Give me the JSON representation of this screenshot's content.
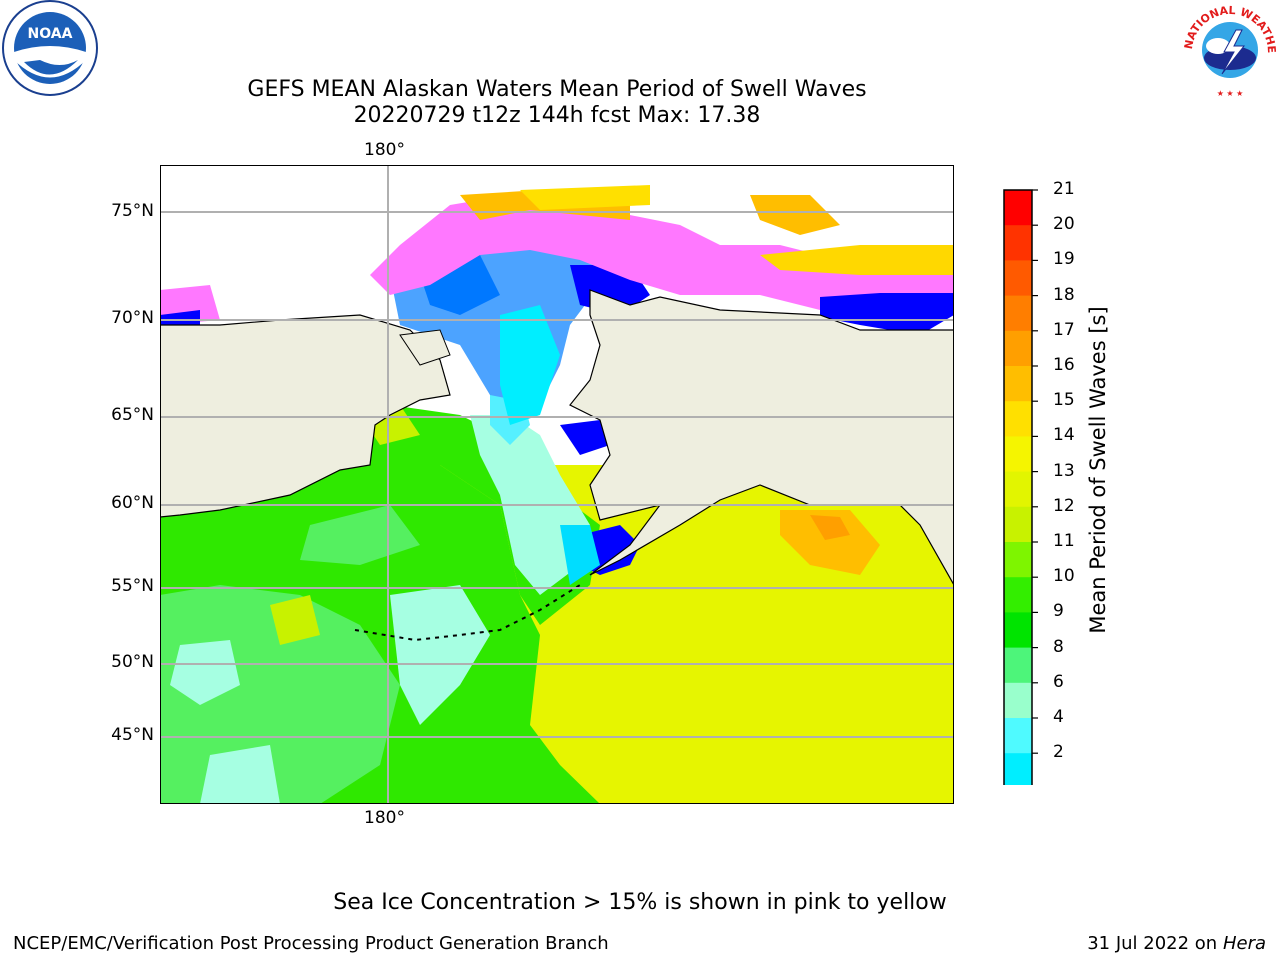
{
  "title": {
    "line1": "GEFS MEAN Alaskan Waters Mean Period of Swell Waves",
    "line2": "20220729 t12z 144h fcst   Max: 17.38"
  },
  "map": {
    "latitude_labels": [
      "75°N",
      "70°N",
      "65°N",
      "60°N",
      "55°N",
      "50°N",
      "45°N"
    ],
    "longitude_label_top": "180°",
    "longitude_label_bottom": "180°",
    "grid": true,
    "land_color": "#eeeedf"
  },
  "colorbar": {
    "label": "Mean Period of Swell Waves [s]",
    "ticks": [
      "21",
      "20",
      "19",
      "18",
      "17",
      "16",
      "15",
      "14",
      "13",
      "12",
      "11",
      "10",
      "9",
      "8",
      "6",
      "4",
      "2"
    ],
    "colors": [
      "#ff0000",
      "#ff3300",
      "#ff5a00",
      "#ff7e00",
      "#ff9f00",
      "#ffbe00",
      "#ffe000",
      "#f5f500",
      "#e2f500",
      "#c8f200",
      "#7ef500",
      "#33ee00",
      "#00e400",
      "#4df57a",
      "#99ffcc",
      "#4ffaff",
      "#00eeff",
      "#0078ff"
    ],
    "extend_color": "#0000ff"
  },
  "note": "Sea Ice Concentration > 15% is shown in pink to yellow",
  "footer": {
    "left": "NCEP/EMC/Verification Post Processing Product Generation Branch",
    "right_prefix": "31 Jul 2022 on ",
    "right_machine": "Hera"
  },
  "logos": {
    "noaa": "NOAA",
    "nws": "NATIONAL WEATHER SERVICE"
  }
}
